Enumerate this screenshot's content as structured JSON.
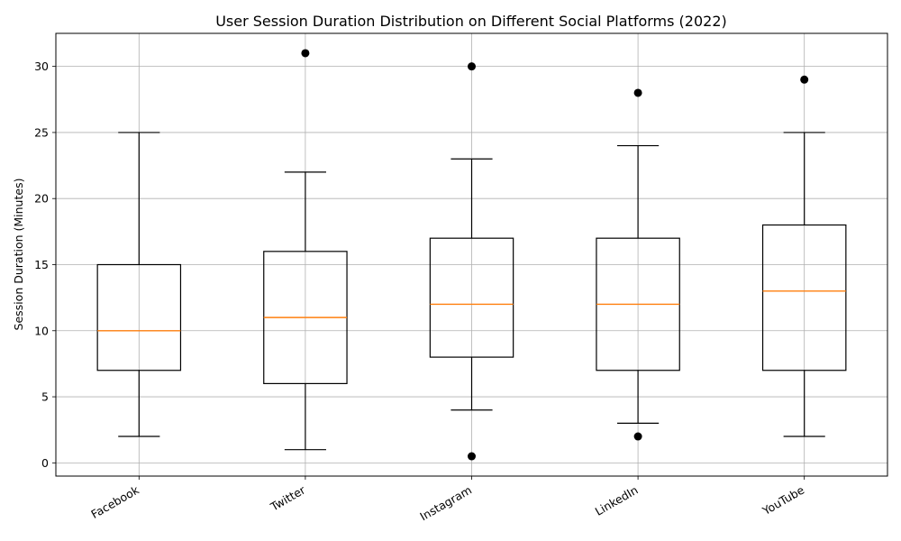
{
  "chart_data": {
    "type": "box",
    "title": "User Session Duration Distribution on Different Social Platforms (2022)",
    "xlabel": "",
    "ylabel": "Session Duration (Minutes)",
    "ylim": [
      -1,
      32.5
    ],
    "yticks": [
      0,
      5,
      10,
      15,
      20,
      25,
      30
    ],
    "grid": true,
    "categories": [
      "Facebook",
      "Twitter",
      "Instagram",
      "LinkedIn",
      "YouTube"
    ],
    "boxes": [
      {
        "name": "Facebook",
        "whisker_low": 2,
        "q1": 7,
        "median": 10,
        "q3": 15,
        "whisker_high": 25,
        "outliers": []
      },
      {
        "name": "Twitter",
        "whisker_low": 1,
        "q1": 6,
        "median": 11,
        "q3": 16,
        "whisker_high": 22,
        "outliers": [
          31
        ]
      },
      {
        "name": "Instagram",
        "whisker_low": 4,
        "q1": 8,
        "median": 12,
        "q3": 17,
        "whisker_high": 23,
        "outliers": [
          0.5,
          30
        ]
      },
      {
        "name": "LinkedIn",
        "whisker_low": 3,
        "q1": 7,
        "median": 12,
        "q3": 17,
        "whisker_high": 24,
        "outliers": [
          2,
          28
        ]
      },
      {
        "name": "YouTube",
        "whisker_low": 2,
        "q1": 7,
        "median": 13,
        "q3": 18,
        "whisker_high": 25,
        "outliers": [
          29
        ]
      }
    ],
    "colors": {
      "box": "#000000",
      "median": "#ff7f0e",
      "grid": "#b0b0b0",
      "outlier": "#000000"
    }
  }
}
